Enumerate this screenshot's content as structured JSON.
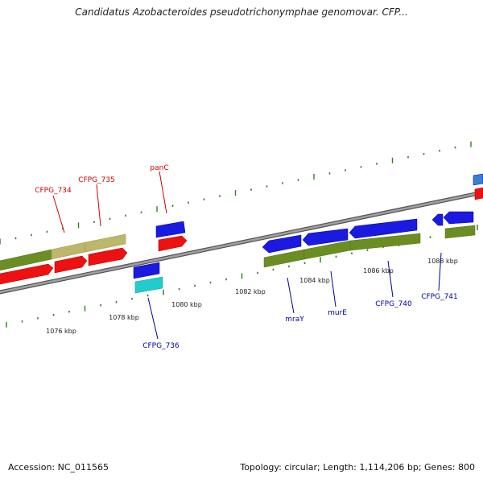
{
  "title": "Candidatus Azobacteroides pseudotrichonymphae genomovar. CFP...",
  "footer": {
    "accession": "Accession: NC_011565",
    "summary": "Topology: circular; Length: 1,114,206 bp; Genes: 800"
  },
  "colors": {
    "background": "#ffffff",
    "backbone": "#808080",
    "tick": "#2e7d1e",
    "gene_red": "#ee1111",
    "gene_blue": "#1a1ae0",
    "gene_cyan": "#22cccc",
    "cds_green": "#6b8e23",
    "cds_khaki": "#bdb76b",
    "label_red": "#cc0000",
    "label_blue": "#000099"
  },
  "scale_labels": [
    "1076 kbp",
    "1078 kbp",
    "1080 kbp",
    "1082 kbp",
    "1084 kbp",
    "1086 kbp",
    "1088 kbp"
  ],
  "gene_labels": [
    {
      "text": "CFPG_734",
      "color": "label_red"
    },
    {
      "text": "CFPG_735",
      "color": "label_red"
    },
    {
      "text": "panC",
      "color": "label_red"
    },
    {
      "text": "CFPG_736",
      "color": "label_blue"
    },
    {
      "text": "mraY",
      "color": "label_blue"
    },
    {
      "text": "murE",
      "color": "label_blue"
    },
    {
      "text": "CFPG_740",
      "color": "label_blue"
    },
    {
      "text": "CFPG_741",
      "color": "label_blue"
    }
  ]
}
